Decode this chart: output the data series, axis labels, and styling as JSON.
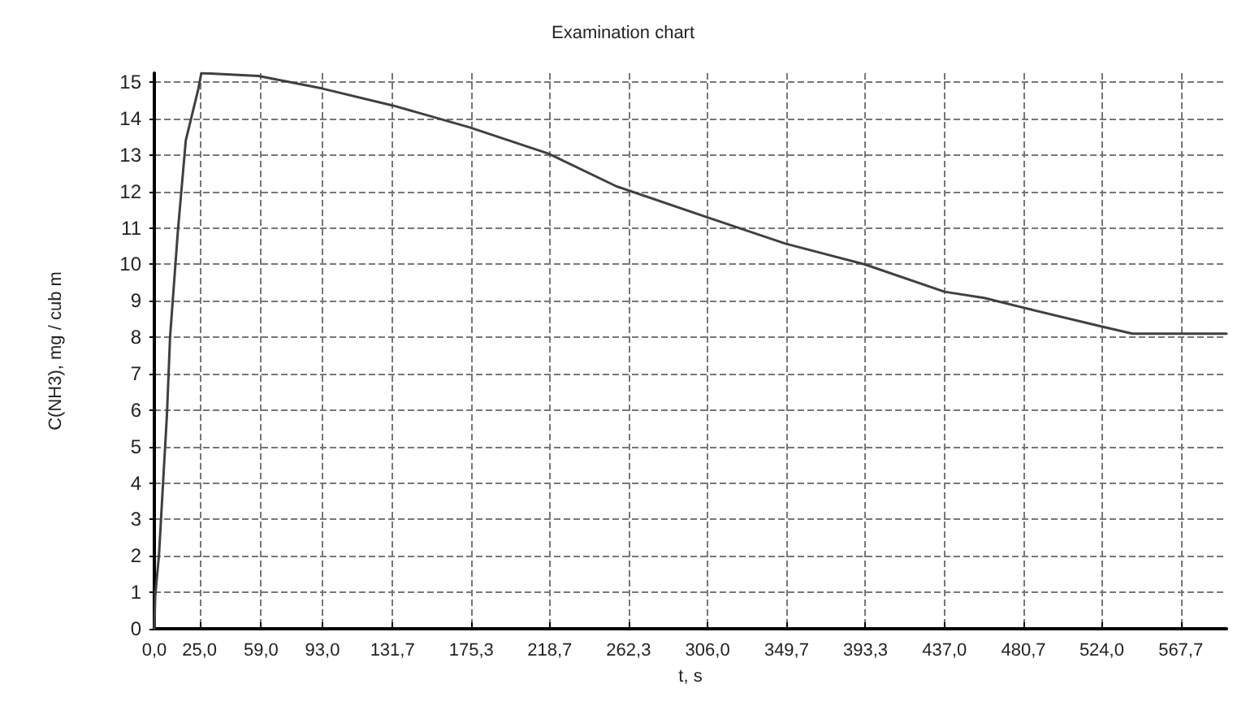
{
  "chart_data": {
    "type": "line",
    "title": "Examination chart",
    "xlabel": "t, s",
    "ylabel": "C(NH3), mg / cub m",
    "x": [
      0,
      0.5,
      2.6,
      7,
      8.7,
      13,
      17.4,
      24.4,
      26,
      57.6,
      92.6,
      132,
      174.5,
      218,
      255.7,
      306,
      349,
      393,
      437,
      459,
      480,
      523.6,
      541,
      593
    ],
    "series": [
      {
        "color": "#404040",
        "values": [
          0,
          0.9,
          2.05,
          5.9,
          8.0,
          10.9,
          13.4,
          14.83,
          15.25,
          15.17,
          14.83,
          14.36,
          13.76,
          13.04,
          12.14,
          11.29,
          10.57,
          10.0,
          9.25,
          9.08,
          8.82,
          8.3,
          8.1,
          8.1
        ]
      }
    ],
    "xlim": [
      0,
      593
    ],
    "ylim": [
      0,
      15.25
    ],
    "xticks": [
      {
        "value": 0,
        "label": "0,0"
      },
      {
        "value": 25,
        "label": "25,0"
      },
      {
        "value": 59,
        "label": "59,0"
      },
      {
        "value": 93,
        "label": "93,0"
      },
      {
        "value": 131.7,
        "label": "131,7"
      },
      {
        "value": 175.3,
        "label": "175,3"
      },
      {
        "value": 218.7,
        "label": "218,7"
      },
      {
        "value": 262.3,
        "label": "262,3"
      },
      {
        "value": 306,
        "label": "306,0"
      },
      {
        "value": 349.7,
        "label": "349,7"
      },
      {
        "value": 393.3,
        "label": "393,3"
      },
      {
        "value": 437,
        "label": "437,0"
      },
      {
        "value": 480.7,
        "label": "480,7"
      },
      {
        "value": 524,
        "label": "524,0"
      },
      {
        "value": 567.7,
        "label": "567,7"
      }
    ],
    "yticks": [
      0,
      1,
      2,
      3,
      4,
      5,
      6,
      7,
      8,
      9,
      10,
      11,
      12,
      13,
      14,
      15
    ],
    "grid": true,
    "marker": "none",
    "line_style": "solid"
  }
}
